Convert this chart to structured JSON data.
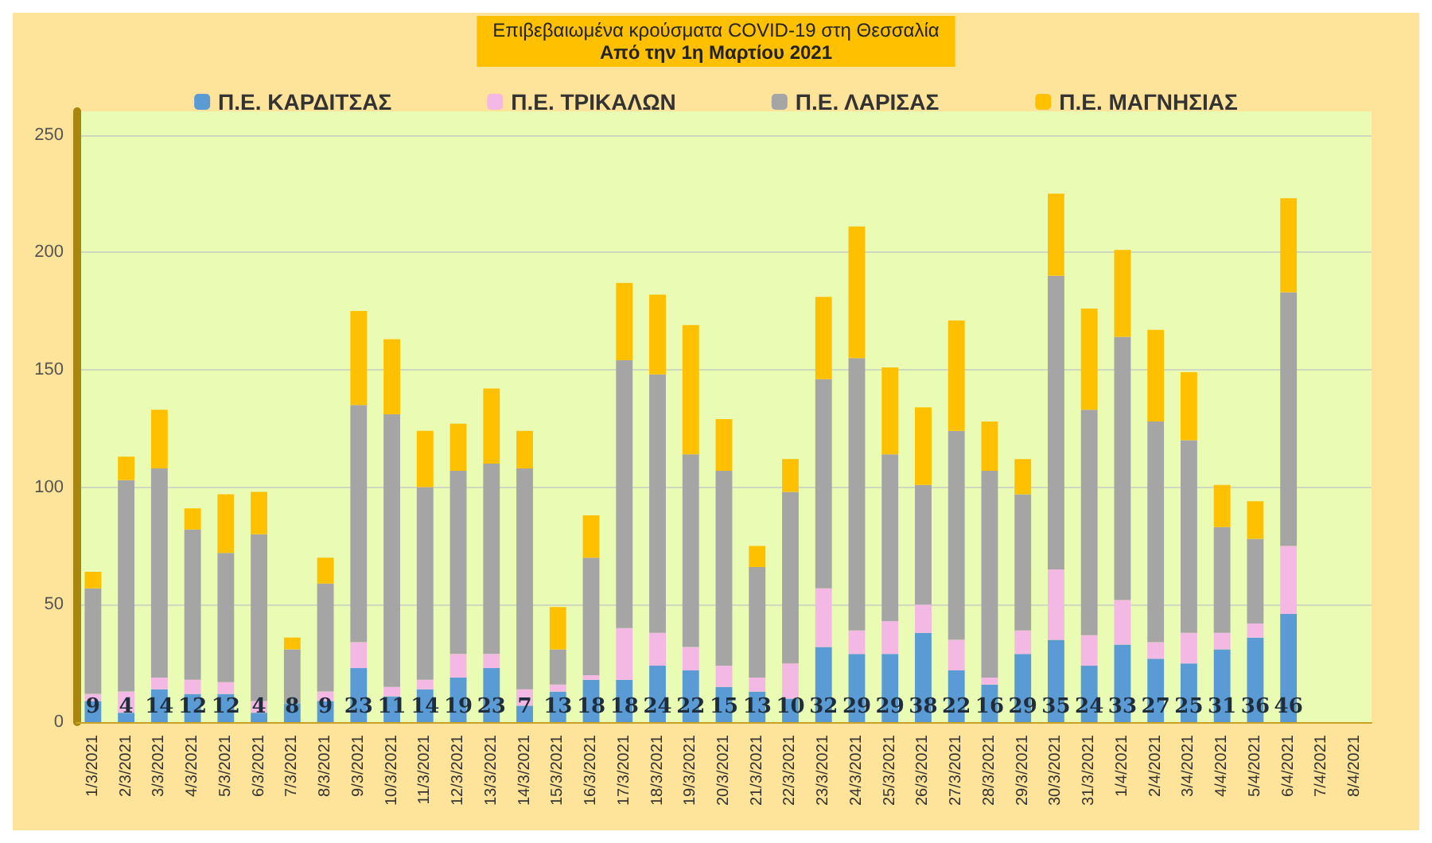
{
  "chart_data": {
    "type": "bar",
    "title": "Επιβεβαιωμένα κρούσματα COVID-19 στη Θεσσαλία",
    "subtitle": "Από την 1η Μαρτίου 2021",
    "categories": [
      "1/3/2021",
      "2/3/2021",
      "3/3/2021",
      "4/3/2021",
      "5/3/2021",
      "6/3/2021",
      "7/3/2021",
      "8/3/2021",
      "9/3/2021",
      "10/3/2021",
      "11/3/2021",
      "12/3/2021",
      "13/3/2021",
      "14/3/2021",
      "15/3/2021",
      "16/3/2021",
      "17/3/2021",
      "18/3/2021",
      "19/3/2021",
      "20/3/2021",
      "21/3/2021",
      "22/3/2021",
      "23/3/2021",
      "24/3/2021",
      "25/3/2021",
      "26/3/2021",
      "27/3/2021",
      "28/3/2021",
      "29/3/2021",
      "30/3/2021",
      "31/3/2021",
      "1/4/2021",
      "2/4/2021",
      "3/4/2021",
      "4/4/2021",
      "5/4/2021",
      "6/4/2021",
      "7/4/2021",
      "8/4/2021"
    ],
    "stacked": true,
    "ylim": [
      0,
      260
    ],
    "yticks": [
      0,
      50,
      100,
      150,
      200,
      250
    ],
    "grid": "y",
    "legend": "top",
    "series": [
      {
        "name": "Π.Ε. ΚΑΡΔΙΤΣΑΣ",
        "color": "#5b9bd5",
        "values": [
          9,
          4,
          14,
          12,
          12,
          4,
          8,
          9,
          23,
          11,
          14,
          19,
          23,
          7,
          13,
          18,
          18,
          24,
          22,
          15,
          13,
          10,
          32,
          29,
          29,
          38,
          22,
          16,
          29,
          35,
          24,
          33,
          27,
          25,
          31,
          36,
          46,
          null,
          null
        ],
        "value_labels": [
          "9",
          "4",
          "14",
          "12",
          "12",
          "4",
          "8",
          "9",
          "23",
          "11",
          "14",
          "19",
          "23",
          "7",
          "13",
          "18",
          "18",
          "24",
          "22",
          "15",
          "13",
          "10",
          "32",
          "29",
          "29",
          "38",
          "22",
          "16",
          "29",
          "35",
          "24",
          "33",
          "27",
          "25",
          "31",
          "36",
          "46",
          null,
          null
        ]
      },
      {
        "name": "Π.Ε. ΤΡΙΚΑΛΩΝ",
        "color": "#f4b8e4",
        "values": [
          3,
          9,
          5,
          6,
          5,
          5,
          null,
          4,
          11,
          4,
          4,
          10,
          6,
          7,
          3,
          2,
          22,
          14,
          10,
          9,
          6,
          15,
          25,
          10,
          14,
          12,
          13,
          3,
          10,
          30,
          13,
          19,
          7,
          13,
          7,
          6,
          29,
          null,
          null
        ]
      },
      {
        "name": "Π.Ε. ΛΑΡΙΣΑΣ",
        "color": "#a5a5a5",
        "values": [
          45,
          90,
          89,
          64,
          55,
          71,
          23,
          46,
          101,
          116,
          82,
          78,
          81,
          94,
          15,
          50,
          114,
          110,
          82,
          83,
          47,
          73,
          89,
          116,
          71,
          51,
          89,
          88,
          58,
          125,
          96,
          112,
          94,
          82,
          45,
          36,
          108,
          null,
          null
        ]
      },
      {
        "name": "Π.Ε. ΜΑΓΝΗΣΙΑΣ",
        "color": "#ffc000",
        "values": [
          7,
          10,
          25,
          9,
          25,
          18,
          5,
          11,
          40,
          32,
          24,
          20,
          32,
          16,
          18,
          18,
          33,
          34,
          55,
          22,
          9,
          14,
          35,
          56,
          37,
          33,
          47,
          21,
          15,
          35,
          43,
          37,
          39,
          29,
          18,
          16,
          40,
          null,
          null
        ]
      }
    ]
  }
}
